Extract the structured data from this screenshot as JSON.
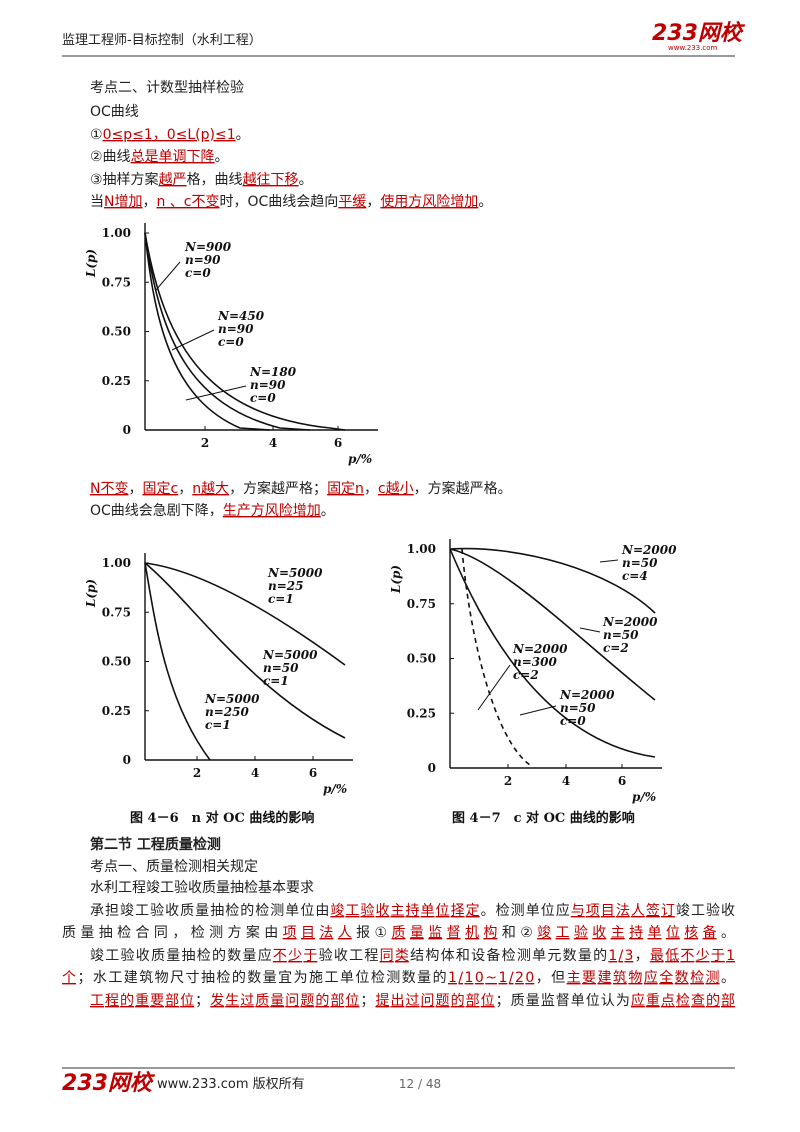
{
  "header": {
    "title": "监理工程师-目标控制（水利工程）",
    "logo": "233网校",
    "logo_url": "www.233.com"
  },
  "body_top": [
    {
      "segments": [
        {
          "text": "考点二、计数型抽样检验",
          "red": false
        }
      ]
    },
    {
      "segments": [
        {
          "text": "OC曲线",
          "red": false
        }
      ]
    },
    {
      "segments": [
        {
          "text": "①",
          "red": false
        },
        {
          "text": "0≤p≤1，0≤L(p)≤1",
          "red": true
        },
        {
          "text": "。",
          "red": false
        }
      ]
    },
    {
      "segments": [
        {
          "text": "②曲线",
          "red": false
        },
        {
          "text": "总是单调下降",
          "red": true
        },
        {
          "text": "。",
          "red": false
        }
      ]
    },
    {
      "segments": [
        {
          "text": "③抽样方案",
          "red": false
        },
        {
          "text": "越严",
          "red": true
        },
        {
          "text": "格，曲线",
          "red": false
        },
        {
          "text": "越往下移",
          "red": true
        },
        {
          "text": "。",
          "red": false
        }
      ]
    },
    {
      "segments": [
        {
          "text": "当",
          "red": false
        },
        {
          "text": "N增加",
          "red": true
        },
        {
          "text": "，",
          "red": false
        },
        {
          "text": "n 、c不变",
          "red": true
        },
        {
          "text": "时，OC曲线会趋向",
          "red": false
        },
        {
          "text": "平缓",
          "red": true
        },
        {
          "text": "，",
          "red": false
        },
        {
          "text": "使用方风险增加",
          "red": true
        },
        {
          "text": "。",
          "red": false
        }
      ]
    }
  ],
  "figure1": {
    "y_label": "L(p)",
    "x_label": "p/%",
    "yticks": [
      "1.00",
      "0.75",
      "0.50",
      "0.25",
      "0"
    ],
    "xticks": [
      "2",
      "4",
      "6"
    ],
    "curves": [
      {
        "label": [
          "N=900",
          "n=90",
          "c=0"
        ]
      },
      {
        "label": [
          "N=450",
          "n=90",
          "c=0"
        ]
      },
      {
        "label": [
          "N=180",
          "n=90",
          "c=0"
        ]
      }
    ]
  },
  "body_middle": [
    {
      "segments": [
        {
          "text": "N不变",
          "red": true
        },
        {
          "text": "，",
          "red": false
        },
        {
          "text": "固定c",
          "red": true
        },
        {
          "text": "，",
          "red": false
        },
        {
          "text": "n越大",
          "red": true
        },
        {
          "text": "，方案越严格；",
          "red": false
        },
        {
          "text": "固定n",
          "red": true
        },
        {
          "text": "，",
          "red": false
        },
        {
          "text": "c越小",
          "red": true
        },
        {
          "text": "，方案越严格。",
          "red": false
        }
      ]
    },
    {
      "segments": [
        {
          "text": "OC曲线会急剧下降，",
          "red": false
        },
        {
          "text": "生产方风险增加",
          "red": true
        },
        {
          "text": "。",
          "red": false
        }
      ]
    }
  ],
  "figure2": {
    "y_label": "L(p)",
    "x_label": "p/%",
    "yticks": [
      "1.00",
      "0.75",
      "0.50",
      "0.25",
      "0"
    ],
    "xticks": [
      "2",
      "4",
      "6"
    ],
    "curves": [
      {
        "label": [
          "N=5000",
          "n=25",
          "c=1"
        ]
      },
      {
        "label": [
          "N=5000",
          "n=50",
          "c=1"
        ]
      },
      {
        "label": [
          "N=5000",
          "n=250",
          "c=1"
        ]
      }
    ],
    "caption": "图 4－6　n 对 OC 曲线的影响"
  },
  "figure3": {
    "y_label": "L(p)",
    "x_label": "p/%",
    "yticks": [
      "1.00",
      "0.75",
      "0.50",
      "0.25",
      "0"
    ],
    "xticks": [
      "2",
      "4",
      "6"
    ],
    "curves": [
      {
        "label": [
          "N=2000",
          "n=50",
          "c=4"
        ]
      },
      {
        "label": [
          "N=2000",
          "n=50",
          "c=2"
        ]
      },
      {
        "label": [
          "N=2000",
          "n=300",
          "c=2"
        ]
      },
      {
        "label": [
          "N=2000",
          "n=50",
          "c=0"
        ]
      }
    ],
    "caption": "图 4－7　c 对 OC 曲线的影响"
  },
  "body_bottom": [
    {
      "segments": [
        {
          "text": "第二节 工程质量检测",
          "red": false
        }
      ]
    },
    {
      "segments": [
        {
          "text": "考点一、质量检测相关规定",
          "red": false
        }
      ]
    },
    {
      "segments": [
        {
          "text": "水利工程竣工验收质量抽检基本要求",
          "red": false
        }
      ]
    },
    {
      "segments": [
        {
          "text": "承担竣工验收质量抽检的检测单位由",
          "red": false
        },
        {
          "text": "竣工验收主持单位择定",
          "red": true
        },
        {
          "text": "。检测单位应",
          "red": false
        },
        {
          "text": "与项目法人签订",
          "red": true
        },
        {
          "text": "竣工验收",
          "red": false
        }
      ]
    },
    {
      "segments": [
        {
          "text": "质量抽检合同，检测方案由",
          "red": false
        },
        {
          "text": "项目法人",
          "red": true
        },
        {
          "text": "报①",
          "red": false
        },
        {
          "text": "质量监督机构",
          "red": true
        },
        {
          "text": "和②",
          "red": false
        },
        {
          "text": "竣工验收主持单位核备",
          "red": true
        },
        {
          "text": "。",
          "red": false
        }
      ]
    },
    {
      "segments": [
        {
          "text": "竣工验收质量抽检的数量应",
          "red": false
        },
        {
          "text": "不少于",
          "red": true
        },
        {
          "text": "验收工程",
          "red": false
        },
        {
          "text": "同类",
          "red": true
        },
        {
          "text": "结构体和设备检测单元数量的",
          "red": false
        },
        {
          "text": "1/3",
          "red": true
        },
        {
          "text": "，",
          "red": false
        },
        {
          "text": "最低不少于1",
          "red": true
        }
      ]
    },
    {
      "segments": [
        {
          "text": "个",
          "red": true
        },
        {
          "text": "；水工建筑物尺寸抽检的数量宜为施工单位检测数量的",
          "red": false
        },
        {
          "text": "1/10~1/20",
          "red": true
        },
        {
          "text": "，但",
          "red": false
        },
        {
          "text": "主要建筑物应全数检测",
          "red": true
        },
        {
          "text": "。",
          "red": false
        }
      ]
    },
    {
      "segments": [
        {
          "text": "工程的重要部位",
          "red": true
        },
        {
          "text": "；",
          "red": false
        },
        {
          "text": "发生过质量问题的部位",
          "red": true
        },
        {
          "text": "；",
          "red": false
        },
        {
          "text": "提出过问题的部位",
          "red": true
        },
        {
          "text": "；质量监督单位认为",
          "red": false
        },
        {
          "text": "应重点检查的部",
          "red": true
        }
      ]
    }
  ],
  "footer": {
    "logo": "233网校",
    "copyright": "www.233.com 版权所有",
    "page": "12 / 48"
  }
}
